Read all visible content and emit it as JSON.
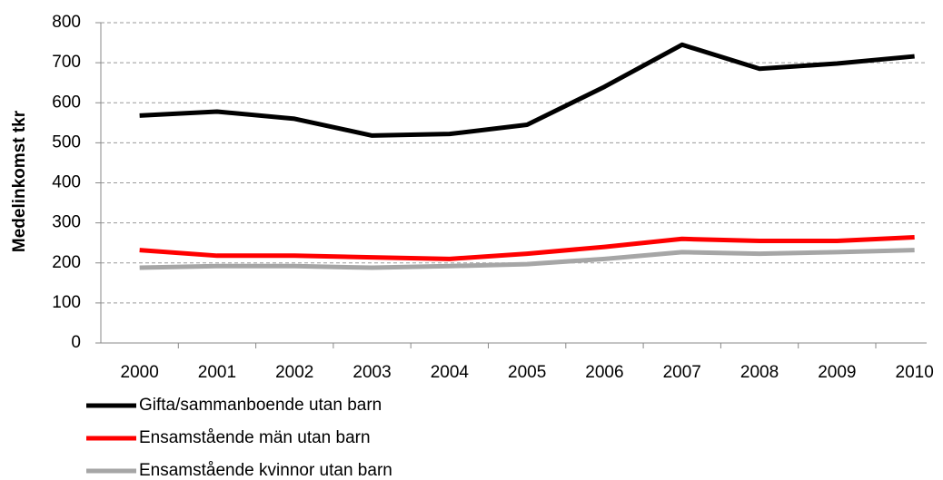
{
  "chart_data": {
    "type": "line",
    "y_label": "Medelinkomst tkr",
    "categories": [
      "2000",
      "2001",
      "2002",
      "2003",
      "2004",
      "2005",
      "2006",
      "2007",
      "2008",
      "2009",
      "2010"
    ],
    "series": [
      {
        "name": "Gifta/sammanboende utan barn",
        "color": "#000000",
        "values": [
          568,
          578,
          560,
          518,
          522,
          545,
          640,
          745,
          685,
          698,
          716
        ]
      },
      {
        "name": "Ensamstående män utan barn",
        "color": "#ff0000",
        "values": [
          232,
          218,
          218,
          214,
          210,
          223,
          240,
          260,
          255,
          255,
          264
        ]
      },
      {
        "name": "Ensamstående kvinnor utan barn",
        "color": "#a6a6a6",
        "values": [
          188,
          192,
          192,
          188,
          192,
          197,
          210,
          227,
          223,
          227,
          232
        ]
      }
    ],
    "ylim": [
      0,
      800
    ],
    "yticks": [
      0,
      100,
      200,
      300,
      400,
      500,
      600,
      700,
      800
    ],
    "grid": true,
    "legend": "bottom-left"
  }
}
